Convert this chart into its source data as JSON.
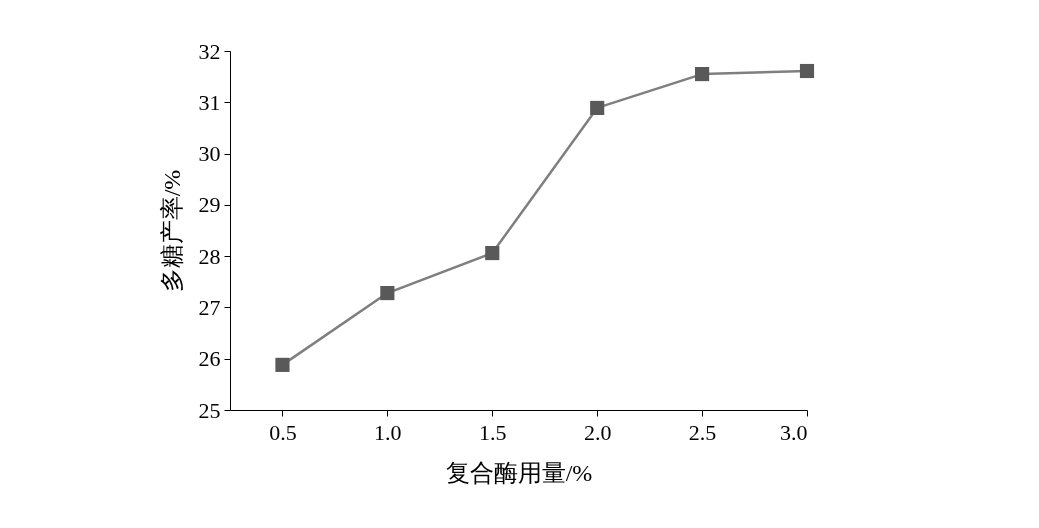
{
  "chart_data": {
    "type": "line",
    "xlabel": "复合酶用量/%",
    "ylabel": "多糖产率/%",
    "x": [
      0.5,
      1.0,
      1.5,
      2.0,
      2.5,
      3.0
    ],
    "series": [
      {
        "color": "#7f7f7f",
        "values": [
          25.88,
          27.28,
          28.06,
          30.89,
          31.55,
          31.61
        ]
      }
    ],
    "xlim": [
      0.25,
      3.0
    ],
    "xticks": [
      0.5,
      {
        "value": 1,
        "label": "1.0"
      },
      1.5,
      {
        "value": 2,
        "label": "2.0"
      },
      2.5,
      {
        "value": 3,
        "label": "3.0"
      }
    ],
    "ylim": [
      25,
      32
    ],
    "yticks": [
      25,
      26,
      27,
      28,
      29,
      30,
      31,
      32
    ],
    "marker": "square",
    "line_style": "solid",
    "grid": false
  }
}
